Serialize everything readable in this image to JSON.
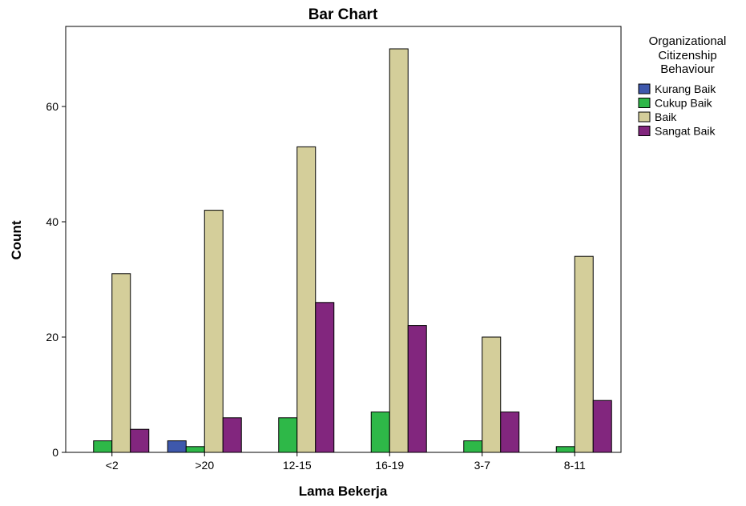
{
  "chart_data": {
    "type": "bar",
    "title": "Bar Chart",
    "xlabel": "Lama Bekerja",
    "ylabel": "Count",
    "ylim": [
      0,
      72
    ],
    "yticks": [
      0,
      20,
      40,
      60
    ],
    "grid": false,
    "legend_position": "right",
    "legend_title": "Organizational Citizenship Behaviour",
    "categories": [
      "<2",
      ">20",
      "12-15",
      "16-19",
      "3-7",
      "8-11"
    ],
    "series": [
      {
        "name": "Kurang Baik",
        "color": "#3E58AC",
        "values": [
          0,
          2,
          0,
          0,
          0,
          0
        ]
      },
      {
        "name": "Cukup Baik",
        "color": "#2EB848",
        "values": [
          2,
          1,
          6,
          7,
          2,
          1
        ]
      },
      {
        "name": "Baik",
        "color": "#D4CE9A",
        "values": [
          31,
          42,
          53,
          70,
          20,
          34
        ]
      },
      {
        "name": "Sangat Baik",
        "color": "#82267E",
        "values": [
          4,
          6,
          26,
          22,
          7,
          9
        ]
      }
    ]
  }
}
